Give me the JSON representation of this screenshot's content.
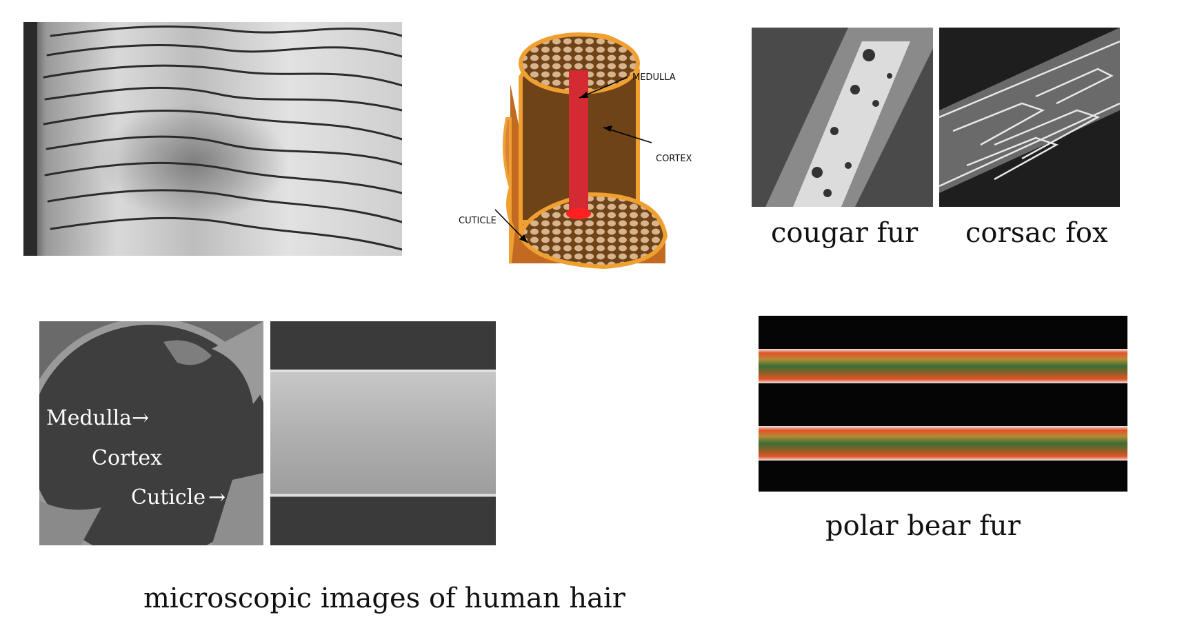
{
  "panels": {
    "cuticle_scales_sem": {
      "name": "cuticle scales micrograph"
    },
    "hair_diagram": {
      "labels": {
        "medulla": "MEDULLA",
        "cortex": "CORTEX",
        "cuticle": "CUTICLE"
      },
      "colors": {
        "outline": "#f0a030",
        "cortex": "#6e4318",
        "medulla": "#d42a33",
        "cells": "#d7b48e",
        "outer": "#c06a22"
      }
    },
    "cougar_fur_sem": {
      "caption": "cougar fur"
    },
    "corsac_fox_sem": {
      "caption": "corsac fox"
    },
    "human_hair_cross_section": {
      "labels": {
        "medulla": "Medulla",
        "cortex": "Cortex",
        "cuticle": "Cuticle"
      }
    },
    "human_hair_shaft_sem": {},
    "polar_bear_fur": {
      "caption": "polar bear fur"
    }
  },
  "captions": {
    "human_hair": "microscopic images of human hair"
  }
}
